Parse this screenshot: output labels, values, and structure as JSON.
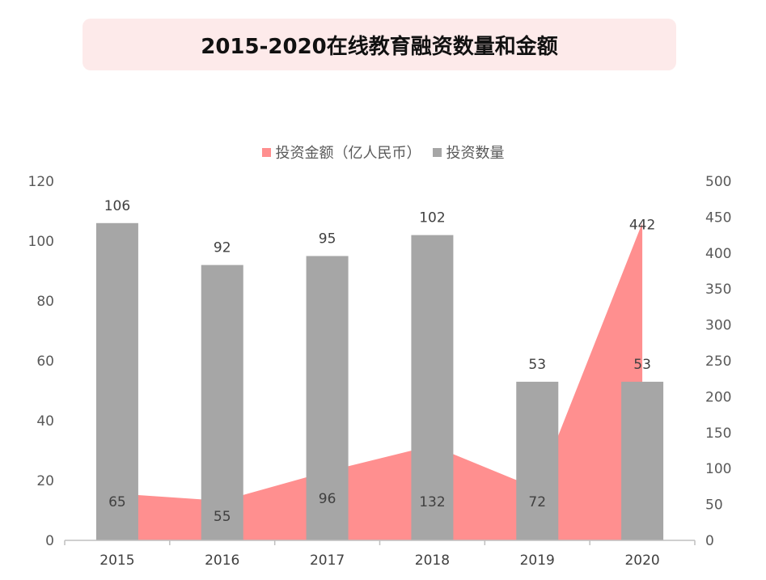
{
  "title": "2015-2020在线教育融资数量和金额",
  "legend": {
    "amount_label": "投资金额（亿人民币）",
    "count_label": "投资数量"
  },
  "colors": {
    "amount": "#ff8f8f",
    "count": "#a6a6a6",
    "title_bg": "#fdeaea"
  },
  "chart_data": {
    "type": "bar+area",
    "categories": [
      "2015",
      "2016",
      "2017",
      "2018",
      "2019",
      "2020"
    ],
    "series": [
      {
        "name": "投资数量",
        "type": "bar",
        "axis": "left",
        "values": [
          106,
          92,
          95,
          102,
          53,
          53
        ]
      },
      {
        "name": "投资金额（亿人民币）",
        "type": "area",
        "axis": "right",
        "values": [
          65,
          55,
          96,
          132,
          72,
          442
        ]
      }
    ],
    "left_axis": {
      "ylim": [
        0,
        120
      ],
      "ticks": [
        "0",
        "20",
        "40",
        "60",
        "80",
        "100",
        "120"
      ]
    },
    "right_axis": {
      "ylim": [
        0,
        500
      ],
      "ticks": [
        "0",
        "50",
        "100",
        "150",
        "200",
        "250",
        "300",
        "350",
        "400",
        "450",
        "500"
      ]
    },
    "legend_position": "top",
    "grid": false
  }
}
